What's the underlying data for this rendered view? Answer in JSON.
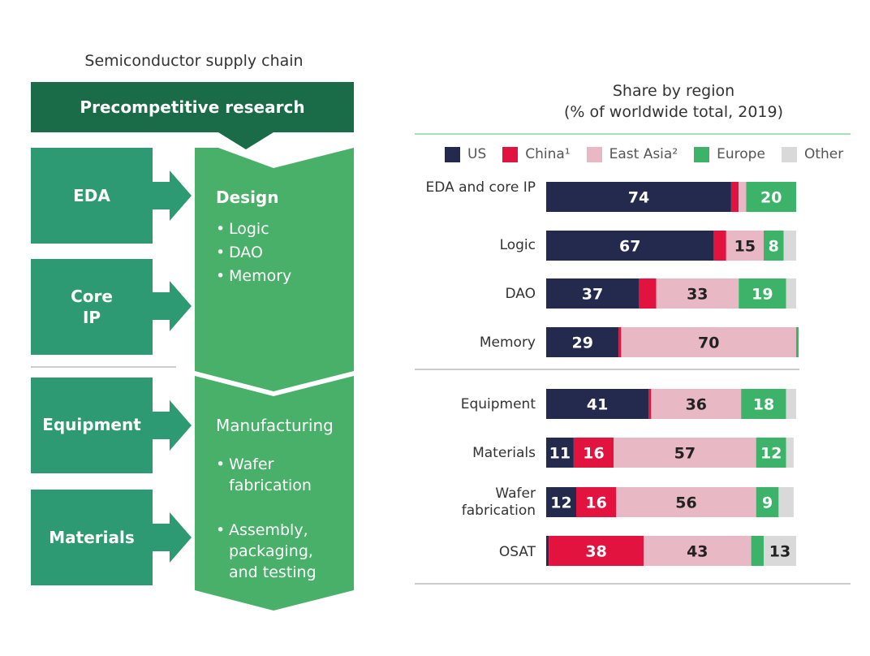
{
  "flow": {
    "title": "Semiconductor supply chain",
    "banner": "Precompetitive research",
    "inputs": [
      "EDA",
      "Core IP",
      "Equipment",
      "Materials"
    ],
    "design": {
      "title": "Design",
      "items": [
        "Logic",
        "DAO",
        "Memory"
      ]
    },
    "manufacturing": {
      "title": "Manufacturing",
      "items": [
        "Wafer fabrication",
        "Assembly, packaging, and testing"
      ]
    },
    "colors": {
      "dark": "#1a6b48",
      "teal": "#2e9a74",
      "green": "#48b068"
    }
  },
  "chart_data": {
    "type": "bar",
    "orientation": "horizontal",
    "stacked": true,
    "title": "Share by region",
    "subtitle": "(% of worldwide total, 2019)",
    "legend_position": "top",
    "xlim": [
      0,
      100
    ],
    "categories": [
      "EDA and core IP",
      "Logic",
      "DAO",
      "Memory",
      "Equipment",
      "Materials",
      "Wafer fabrication",
      "OSAT"
    ],
    "series": [
      {
        "name": "US",
        "legend": "US",
        "color": "#242a4e",
        "values": [
          74,
          67,
          37,
          29,
          41,
          11,
          12,
          1
        ]
      },
      {
        "name": "China",
        "legend": "China¹",
        "color": "#e2133f",
        "values": [
          3,
          5,
          7,
          1,
          1,
          16,
          16,
          38
        ]
      },
      {
        "name": "East Asia",
        "legend": "East Asia²",
        "color": "#e8b8c4",
        "values": [
          3,
          15,
          33,
          70,
          36,
          57,
          56,
          43
        ]
      },
      {
        "name": "Europe",
        "legend": "Europe",
        "color": "#3db36a",
        "values": [
          20,
          8,
          19,
          1,
          18,
          12,
          9,
          5
        ]
      },
      {
        "name": "Other",
        "legend": "Other",
        "color": "#d9d9d9",
        "values": [
          0,
          5,
          4,
          0,
          4,
          3,
          6,
          13
        ]
      }
    ],
    "data_labels": [
      {
        "category": 0,
        "series": 0,
        "text": "74"
      },
      {
        "category": 0,
        "series": 3,
        "text": "20"
      },
      {
        "category": 1,
        "series": 0,
        "text": "67"
      },
      {
        "category": 1,
        "series": 2,
        "text": "15"
      },
      {
        "category": 1,
        "series": 3,
        "text": "8"
      },
      {
        "category": 2,
        "series": 0,
        "text": "37"
      },
      {
        "category": 2,
        "series": 2,
        "text": "33"
      },
      {
        "category": 2,
        "series": 3,
        "text": "19"
      },
      {
        "category": 3,
        "series": 0,
        "text": "29"
      },
      {
        "category": 3,
        "series": 2,
        "text": "70"
      },
      {
        "category": 4,
        "series": 0,
        "text": "41"
      },
      {
        "category": 4,
        "series": 2,
        "text": "36"
      },
      {
        "category": 4,
        "series": 3,
        "text": "18"
      },
      {
        "category": 5,
        "series": 0,
        "text": "11"
      },
      {
        "category": 5,
        "series": 1,
        "text": "16"
      },
      {
        "category": 5,
        "series": 2,
        "text": "57"
      },
      {
        "category": 5,
        "series": 3,
        "text": "12"
      },
      {
        "category": 6,
        "series": 0,
        "text": "12"
      },
      {
        "category": 6,
        "series": 1,
        "text": "16"
      },
      {
        "category": 6,
        "series": 2,
        "text": "56"
      },
      {
        "category": 6,
        "series": 3,
        "text": "9"
      },
      {
        "category": 7,
        "series": 1,
        "text": "38"
      },
      {
        "category": 7,
        "series": 2,
        "text": "43"
      },
      {
        "category": 7,
        "series": 4,
        "text": "13"
      }
    ]
  }
}
